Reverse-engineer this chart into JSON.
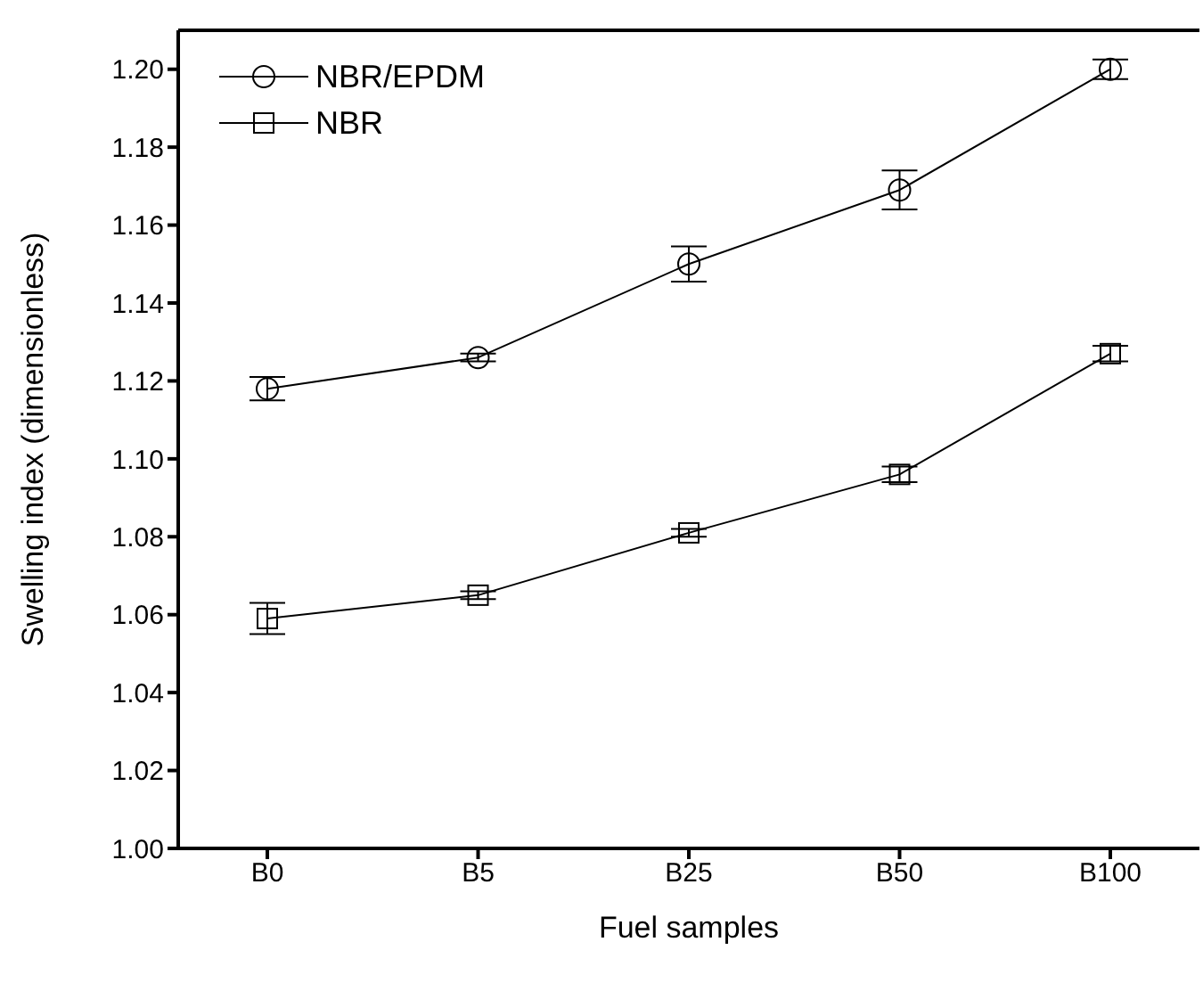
{
  "chart_data": {
    "type": "line",
    "xlabel": "Fuel samples",
    "ylabel": "Swelling index (dimensionless)",
    "categories": [
      "B0",
      "B5",
      "B25",
      "B50",
      "B100"
    ],
    "series": [
      {
        "name": "NBR/EPDM",
        "color": "#000000",
        "marker": "circle",
        "values": [
          1.118,
          1.126,
          1.15,
          1.169,
          1.2
        ],
        "errors": [
          0.003,
          0.001,
          0.0045,
          0.005,
          0.0025
        ]
      },
      {
        "name": "NBR",
        "color": "#000000",
        "marker": "square",
        "values": [
          1.059,
          1.065,
          1.081,
          1.096,
          1.127
        ],
        "errors": [
          0.004,
          0.001,
          0.001,
          0.002,
          0.002
        ]
      }
    ],
    "ylim": [
      1.0,
      1.21
    ],
    "yticks": [
      {
        "value": 1.0,
        "label": "1.00"
      },
      {
        "value": 1.02,
        "label": "1.02"
      },
      {
        "value": 1.04,
        "label": "1.04"
      },
      {
        "value": 1.06,
        "label": "1.06"
      },
      {
        "value": 1.08,
        "label": "1.08"
      },
      {
        "value": 1.1,
        "label": "1.10"
      },
      {
        "value": 1.12,
        "label": "1.12"
      },
      {
        "value": 1.14,
        "label": "1.14"
      },
      {
        "value": 1.16,
        "label": "1.16"
      },
      {
        "value": 1.18,
        "label": "1.18"
      },
      {
        "value": 1.2,
        "label": "1.20"
      }
    ],
    "grid": false,
    "legend": "top left",
    "line_style": "solid"
  }
}
